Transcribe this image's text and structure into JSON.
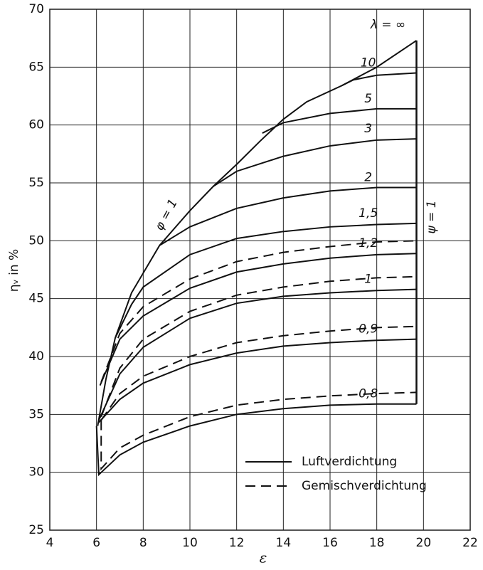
{
  "chart_data": {
    "type": "line",
    "xlabel": "ε",
    "ylabel": "ηᵥ in %",
    "xlim": [
      4,
      22
    ],
    "ylim": [
      25,
      70
    ],
    "xticks": [
      4,
      6,
      8,
      10,
      12,
      14,
      16,
      18,
      20,
      22
    ],
    "yticks": [
      25,
      30,
      35,
      40,
      45,
      50,
      55,
      60,
      65,
      70
    ],
    "grid": true,
    "series": [
      {
        "label": "λ = ∞",
        "dashed": false,
        "x": [
          6.05,
          6.4,
          6.8,
          7.5,
          8.7,
          10,
          11,
          12,
          13,
          14,
          15,
          16.5,
          18,
          19.7
        ],
        "values": [
          34,
          38,
          41.6,
          45.5,
          49.6,
          52.6,
          54.7,
          56.6,
          58.6,
          60.5,
          62,
          63.4,
          65,
          67.3
        ]
      },
      {
        "label": "10",
        "dashed": false,
        "x": [
          16.5,
          17,
          18,
          19.7
        ],
        "values": [
          63.4,
          63.9,
          64.3,
          64.5
        ]
      },
      {
        "label": "5",
        "dashed": false,
        "x": [
          13.1,
          14,
          16,
          18,
          19.7
        ],
        "values": [
          59.3,
          60.2,
          61,
          61.4,
          61.4
        ]
      },
      {
        "label": "3",
        "dashed": false,
        "x": [
          11,
          12,
          14,
          16,
          18,
          19.7
        ],
        "values": [
          54.7,
          56,
          57.3,
          58.2,
          58.7,
          58.8
        ]
      },
      {
        "label": "2",
        "dashed": false,
        "x": [
          8.7,
          10,
          12,
          14,
          16,
          18,
          19.7
        ],
        "values": [
          49.6,
          51.2,
          52.8,
          53.7,
          54.3,
          54.6,
          54.6
        ]
      },
      {
        "label": "1,5",
        "dashed": false,
        "x": [
          6.8,
          7.5,
          8,
          10,
          12,
          14,
          16,
          18,
          19.7
        ],
        "values": [
          41.6,
          44.5,
          46,
          48.8,
          50.2,
          50.8,
          51.2,
          51.4,
          51.5
        ]
      },
      {
        "label": "1,2",
        "dashed": false,
        "x": [
          6.15,
          7,
          8,
          10,
          12,
          14,
          16,
          18,
          19.7
        ],
        "values": [
          37.5,
          41.5,
          43.5,
          45.9,
          47.3,
          48,
          48.5,
          48.8,
          48.9
        ]
      },
      {
        "dashed": true,
        "x": [
          6.2,
          7,
          8,
          10,
          12,
          14,
          16,
          18,
          19.7
        ],
        "values": [
          37.8,
          42,
          44.3,
          46.7,
          48.2,
          49,
          49.5,
          49.9,
          50
        ]
      },
      {
        "label": "1",
        "dashed": false,
        "x": [
          6.1,
          7,
          8,
          10,
          12,
          14,
          16,
          18,
          19.7
        ],
        "values": [
          34.5,
          38.5,
          40.8,
          43.3,
          44.6,
          45.2,
          45.5,
          45.7,
          45.8
        ]
      },
      {
        "dashed": true,
        "x": [
          6.2,
          7,
          8,
          10,
          12,
          14,
          16,
          18,
          19.7
        ],
        "values": [
          34.8,
          39,
          41.5,
          43.9,
          45.3,
          46,
          46.5,
          46.8,
          46.9
        ]
      },
      {
        "label": "0,9",
        "dashed": false,
        "x": [
          6.05,
          7,
          8,
          10,
          12,
          14,
          16,
          18,
          19.7
        ],
        "values": [
          34.2,
          36.3,
          37.7,
          39.3,
          40.3,
          40.9,
          41.2,
          41.4,
          41.5
        ]
      },
      {
        "dashed": true,
        "x": [
          6.2,
          7,
          8,
          10,
          12,
          14,
          16,
          18,
          19.7
        ],
        "values": [
          34.5,
          36.8,
          38.3,
          40,
          41.2,
          41.8,
          42.2,
          42.5,
          42.6
        ]
      },
      {
        "label": "0,8",
        "dashed": false,
        "x": [
          6,
          6.1,
          7,
          8,
          10,
          12,
          14,
          16,
          18,
          19.7
        ],
        "values": [
          34,
          29.8,
          31.5,
          32.6,
          34,
          35,
          35.5,
          35.8,
          35.9,
          35.9
        ]
      },
      {
        "dashed": true,
        "x": [
          6.2,
          6.2,
          7,
          8,
          10,
          12,
          14,
          16,
          18,
          19.7
        ],
        "values": [
          34.5,
          30.3,
          32.1,
          33.2,
          34.8,
          35.8,
          36.3,
          36.6,
          36.8,
          36.9
        ]
      }
    ],
    "boundary": {
      "label": "ψ = 1",
      "x": [
        19.7,
        19.7
      ],
      "values": [
        35.9,
        67.3
      ]
    },
    "envelope_label": "φ = 1",
    "legend": [
      {
        "name": "Luftverdichtung",
        "dashed": false
      },
      {
        "name": "Gemischverdichtung",
        "dashed": true
      }
    ]
  }
}
